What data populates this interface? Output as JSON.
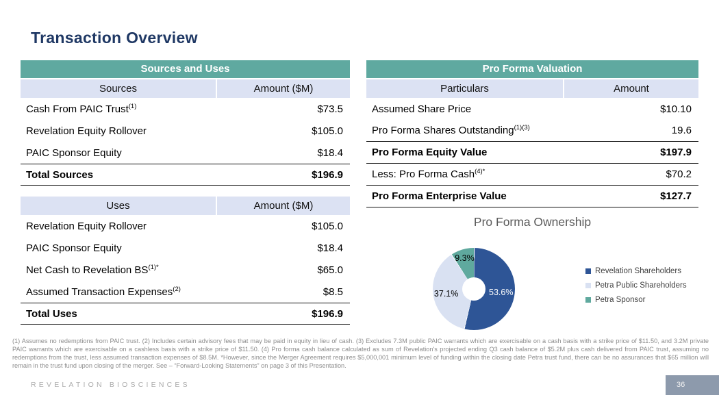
{
  "slide": {
    "title": "Transaction Overview",
    "page_number": "36",
    "footer_brand": "REVELATION BIOSCIENCES",
    "footnotes": "(1) Assumes no redemptions from PAIC trust.  (2) Includes certain advisory fees that may be paid in equity in lieu of cash.  (3) Excludes 7.3M public PAIC warrants which are exercisable on a cash basis with a strike price of $11.50, and 3.2M private PAIC warrants which are exercisable on a cashless basis with a strike price of $11.50.  (4) Pro forma cash balance calculated as sum of Revelation's projected ending Q3 cash balance of $5.2M plus cash delivered from PAIC trust, assuming no redemptions from the trust, less assumed transaction expenses of $8.5M. *However, since the Merger Agreement requires $5,000,001 minimum level of funding within the closing date Petra trust fund, there can be no assurances that $65 million will remain in the trust fund upon closing of the merger. See – “Forward-Looking Statements” on page 3 of this Presentation."
  },
  "sources_and_uses": {
    "header": "Sources and Uses",
    "sources": {
      "col_label": "Sources",
      "col_amount": "Amount ($M)",
      "rows": [
        {
          "label": "Cash From PAIC Trust",
          "sup": "(1)",
          "amount": "$73.5"
        },
        {
          "label": "Revelation Equity Rollover",
          "sup": "",
          "amount": "$105.0"
        },
        {
          "label": "PAIC Sponsor Equity",
          "sup": "",
          "amount": "$18.4"
        }
      ],
      "total": {
        "label": "Total Sources",
        "amount": "$196.9"
      }
    },
    "uses": {
      "col_label": "Uses",
      "col_amount": "Amount ($M)",
      "rows": [
        {
          "label": "Revelation Equity Rollover",
          "sup": "",
          "amount": "$105.0"
        },
        {
          "label": "PAIC Sponsor Equity",
          "sup": "",
          "amount": "$18.4"
        },
        {
          "label": "Net Cash to Revelation BS",
          "sup": "(1)*",
          "amount": "$65.0"
        },
        {
          "label": "Assumed Transaction Expenses",
          "sup": "(2)",
          "amount": "$8.5"
        }
      ],
      "total": {
        "label": "Total Uses",
        "amount": "$196.9"
      }
    }
  },
  "pro_forma_valuation": {
    "header": "Pro Forma Valuation",
    "col_label": "Particulars",
    "col_amount": "Amount",
    "rows": [
      {
        "label": "Assumed Share Price",
        "sup": "",
        "amount": "$10.10"
      },
      {
        "label": "Pro Forma Shares Outstanding",
        "sup": "(1)(3)",
        "amount": "19.6"
      },
      {
        "label": "Pro Forma Equity Value",
        "sup": "",
        "amount": "$197.9"
      },
      {
        "label": "Less: Pro Forma Cash",
        "sup": "(4)*",
        "amount": "$70.2"
      },
      {
        "label": "Pro Forma Enterprise Value",
        "sup": "",
        "amount": "$127.7"
      }
    ]
  },
  "chart_data": {
    "type": "pie",
    "donut": true,
    "title": "Pro Forma Ownership",
    "categories": [
      "Revelation Shareholders",
      "Petra Public Shareholders",
      "Petra Sponsor"
    ],
    "values": [
      53.6,
      37.1,
      9.3
    ],
    "data_labels": [
      "53.6%",
      "37.1%",
      "9.3%"
    ],
    "colors": [
      "#2E5596",
      "#D9E1F2",
      "#5FA99E"
    ],
    "label_colors": [
      "#ffffff",
      "#000000",
      "#000000"
    ],
    "label_radius": [
      40,
      41,
      47
    ],
    "start_angle_deg": 0,
    "legend_position": "right"
  },
  "colors": {
    "header_teal": "#5FA9A0",
    "subheader_lavender": "#DCE2F3",
    "title_navy": "#1F3864",
    "page_badge": "#8D9AAC",
    "chart_title_gray": "#595959",
    "footnote_gray": "#8C8C8C"
  }
}
